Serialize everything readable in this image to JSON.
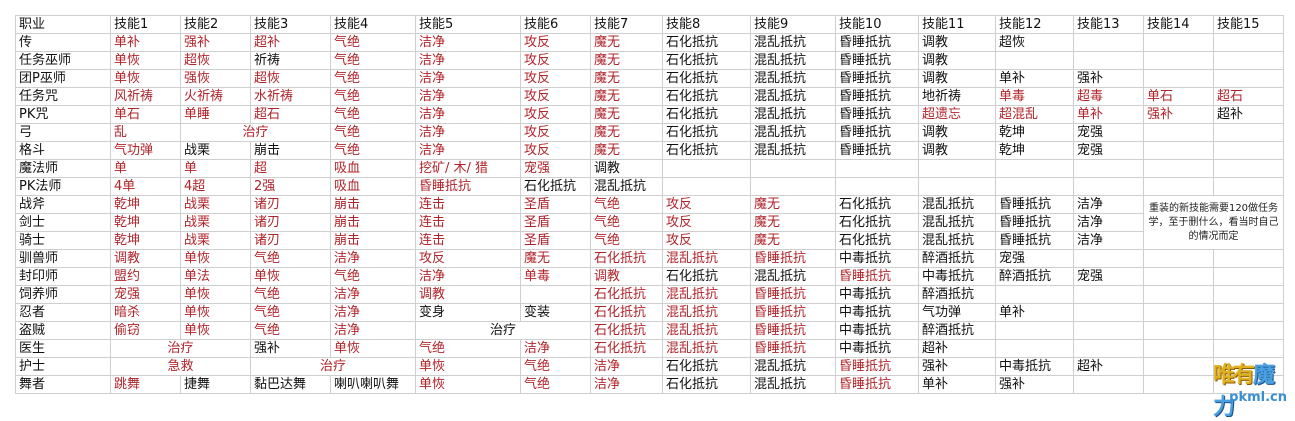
{
  "colors": {
    "red": "#b0242a",
    "black": "#111111",
    "grid": "#cfcfcf"
  },
  "header": [
    "职业",
    "技能1",
    "技能2",
    "技能3",
    "技能4",
    "技能5",
    "技能6",
    "技能7",
    "技能8",
    "技能9",
    "技能10",
    "技能11",
    "技能12",
    "技能13",
    "技能14",
    "技能15"
  ],
  "rows": [
    {
      "job": "传",
      "cells": [
        [
          "单补",
          "r"
        ],
        [
          "强补",
          "r"
        ],
        [
          "超补",
          "r"
        ],
        [
          "气绝",
          "r"
        ],
        [
          "洁净",
          "r"
        ],
        [
          "攻反",
          "r"
        ],
        [
          "魔无",
          "r"
        ],
        [
          "石化抵抗"
        ],
        [
          "混乱抵抗"
        ],
        [
          "昏睡抵抗"
        ],
        [
          "调教"
        ],
        [
          "超恢"
        ],
        [
          ""
        ],
        [
          ""
        ],
        [
          ""
        ]
      ]
    },
    {
      "job": "任务巫师",
      "cells": [
        [
          "单恢",
          "r"
        ],
        [
          "超恢",
          "r"
        ],
        [
          "祈祷"
        ],
        [
          "气绝",
          "r"
        ],
        [
          "洁净",
          "r"
        ],
        [
          "攻反",
          "r"
        ],
        [
          "魔无",
          "r"
        ],
        [
          "石化抵抗"
        ],
        [
          "混乱抵抗"
        ],
        [
          "昏睡抵抗"
        ],
        [
          "调教"
        ],
        [
          ""
        ],
        [
          ""
        ],
        [
          ""
        ],
        [
          ""
        ]
      ]
    },
    {
      "job": "团P巫师",
      "cells": [
        [
          "单恢",
          "r"
        ],
        [
          "强恢",
          "r"
        ],
        [
          "超恢",
          "r"
        ],
        [
          "气绝",
          "r"
        ],
        [
          "洁净",
          "r"
        ],
        [
          "攻反",
          "r"
        ],
        [
          "魔无",
          "r"
        ],
        [
          "石化抵抗"
        ],
        [
          "混乱抵抗"
        ],
        [
          "昏睡抵抗"
        ],
        [
          "调教"
        ],
        [
          "单补"
        ],
        [
          "强补"
        ],
        [
          ""
        ],
        [
          ""
        ]
      ]
    },
    {
      "job": "任务咒",
      "cells": [
        [
          "风祈祷",
          "r"
        ],
        [
          "火祈祷",
          "r"
        ],
        [
          "水祈祷",
          "r"
        ],
        [
          "气绝",
          "r"
        ],
        [
          "洁净",
          "r"
        ],
        [
          "攻反",
          "r"
        ],
        [
          "魔无",
          "r"
        ],
        [
          "石化抵抗"
        ],
        [
          "混乱抵抗"
        ],
        [
          "昏睡抵抗"
        ],
        [
          "地祈祷"
        ],
        [
          "单毒",
          "r"
        ],
        [
          "超毒",
          "r"
        ],
        [
          "单石",
          "r"
        ],
        [
          "超石",
          "r"
        ]
      ]
    },
    {
      "job": "PK咒",
      "cells": [
        [
          "单石",
          "r"
        ],
        [
          "单睡",
          "r"
        ],
        [
          "超石",
          "r"
        ],
        [
          "气绝",
          "r"
        ],
        [
          "洁净",
          "r"
        ],
        [
          "攻反",
          "r"
        ],
        [
          "魔无",
          "r"
        ],
        [
          "石化抵抗"
        ],
        [
          "混乱抵抗"
        ],
        [
          "昏睡抵抗"
        ],
        [
          "超遗忘",
          "r"
        ],
        [
          "超混乱",
          "r"
        ],
        [
          "单补",
          "r"
        ],
        [
          "强补",
          "r"
        ],
        [
          "超补"
        ]
      ]
    },
    {
      "job": "弓",
      "cells": [
        [
          "乱",
          "r"
        ],
        [
          "治疗",
          "r",
          2
        ],
        [
          "气绝",
          "r"
        ],
        [
          "洁净",
          "r"
        ],
        [
          "攻反",
          "r"
        ],
        [
          "魔无",
          "r"
        ],
        [
          "石化抵抗"
        ],
        [
          "混乱抵抗"
        ],
        [
          "昏睡抵抗"
        ],
        [
          "调教"
        ],
        [
          "乾坤"
        ],
        [
          "宠强"
        ],
        [
          ""
        ],
        [
          ""
        ]
      ]
    },
    {
      "job": "格斗",
      "cells": [
        [
          "气功弹",
          "r"
        ],
        [
          "战栗"
        ],
        [
          "崩击"
        ],
        [
          "气绝",
          "r"
        ],
        [
          "洁净",
          "r"
        ],
        [
          "攻反",
          "r"
        ],
        [
          "魔无",
          "r"
        ],
        [
          "石化抵抗"
        ],
        [
          "混乱抵抗"
        ],
        [
          "昏睡抵抗"
        ],
        [
          "调教"
        ],
        [
          "乾坤"
        ],
        [
          "宠强"
        ],
        [
          ""
        ],
        [
          ""
        ]
      ]
    },
    {
      "job": "魔法师",
      "cells": [
        [
          "单",
          "r"
        ],
        [
          "单",
          "r"
        ],
        [
          "超",
          "r"
        ],
        [
          "吸血",
          "r"
        ],
        [
          "挖矿/ 木/ 猎",
          "r"
        ],
        [
          "宠强",
          "r"
        ],
        [
          "调教"
        ],
        [
          ""
        ],
        [
          ""
        ],
        [
          ""
        ],
        [
          ""
        ],
        [
          ""
        ],
        [
          ""
        ],
        [
          ""
        ],
        [
          ""
        ]
      ]
    },
    {
      "job": "PK法师",
      "cells": [
        [
          "4单",
          "r"
        ],
        [
          "4超",
          "r"
        ],
        [
          "2强",
          "r"
        ],
        [
          "吸血",
          "r"
        ],
        [
          "昏睡抵抗",
          "r"
        ],
        [
          "石化抵抗"
        ],
        [
          "混乱抵抗"
        ],
        [
          ""
        ],
        [
          ""
        ],
        [
          ""
        ],
        [
          ""
        ],
        [
          ""
        ],
        [
          ""
        ],
        [
          ""
        ],
        [
          ""
        ]
      ]
    },
    {
      "job": "战斧",
      "cells": [
        [
          "乾坤",
          "r"
        ],
        [
          "战栗",
          "r"
        ],
        [
          "诸刃",
          "r"
        ],
        [
          "崩击",
          "r"
        ],
        [
          "连击",
          "r"
        ],
        [
          "圣盾",
          "r"
        ],
        [
          "气绝",
          "r"
        ],
        [
          "攻反",
          "r"
        ],
        [
          "魔无",
          "r"
        ],
        [
          "石化抵抗"
        ],
        [
          "混乱抵抗"
        ],
        [
          "昏睡抵抗"
        ],
        [
          "洁净"
        ]
      ],
      "note": true
    },
    {
      "job": "剑士",
      "cells": [
        [
          "乾坤",
          "r"
        ],
        [
          "战栗",
          "r"
        ],
        [
          "诸刃",
          "r"
        ],
        [
          "崩击",
          "r"
        ],
        [
          "连击",
          "r"
        ],
        [
          "圣盾",
          "r"
        ],
        [
          "气绝",
          "r"
        ],
        [
          "攻反",
          "r"
        ],
        [
          "魔无",
          "r"
        ],
        [
          "石化抵抗"
        ],
        [
          "混乱抵抗"
        ],
        [
          "昏睡抵抗"
        ],
        [
          "洁净"
        ]
      ]
    },
    {
      "job": "骑士",
      "cells": [
        [
          "乾坤",
          "r"
        ],
        [
          "战栗",
          "r"
        ],
        [
          "诸刃",
          "r"
        ],
        [
          "崩击",
          "r"
        ],
        [
          "连击",
          "r"
        ],
        [
          "圣盾",
          "r"
        ],
        [
          "气绝",
          "r"
        ],
        [
          "攻反",
          "r"
        ],
        [
          "魔无",
          "r"
        ],
        [
          "石化抵抗"
        ],
        [
          "混乱抵抗"
        ],
        [
          "昏睡抵抗"
        ],
        [
          "洁净"
        ]
      ]
    },
    {
      "job": "驯兽师",
      "cells": [
        [
          "调教",
          "r"
        ],
        [
          "单恢",
          "r"
        ],
        [
          "气绝",
          "r"
        ],
        [
          "洁净",
          "r"
        ],
        [
          "攻反",
          "r"
        ],
        [
          "魔无",
          "r"
        ],
        [
          "石化抵抗",
          "r"
        ],
        [
          "混乱抵抗",
          "r"
        ],
        [
          "昏睡抵抗",
          "r"
        ],
        [
          "中毒抵抗"
        ],
        [
          "醉酒抵抗"
        ],
        [
          "宠强"
        ],
        [
          ""
        ],
        [
          ""
        ],
        [
          ""
        ]
      ]
    },
    {
      "job": "封印师",
      "cells": [
        [
          "盟约",
          "r"
        ],
        [
          "单法",
          "r"
        ],
        [
          "单恢",
          "r"
        ],
        [
          "气绝",
          "r"
        ],
        [
          "洁净",
          "r"
        ],
        [
          "单毒",
          "r"
        ],
        [
          "调教",
          "r"
        ],
        [
          "石化抵抗"
        ],
        [
          "混乱抵抗"
        ],
        [
          "昏睡抵抗",
          "r"
        ],
        [
          "中毒抵抗"
        ],
        [
          "醉酒抵抗"
        ],
        [
          "宠强"
        ],
        [
          ""
        ],
        [
          ""
        ]
      ]
    },
    {
      "job": "饲养师",
      "cells": [
        [
          "宠强",
          "r"
        ],
        [
          "单恢",
          "r"
        ],
        [
          "气绝",
          "r"
        ],
        [
          "洁净",
          "r"
        ],
        [
          "调教",
          "r"
        ],
        [
          ""
        ],
        [
          "石化抵抗",
          "r"
        ],
        [
          "混乱抵抗",
          "r"
        ],
        [
          "昏睡抵抗",
          "r"
        ],
        [
          "中毒抵抗"
        ],
        [
          "醉酒抵抗"
        ],
        [
          ""
        ],
        [
          ""
        ],
        [
          ""
        ],
        [
          ""
        ]
      ]
    },
    {
      "job": "忍者",
      "cells": [
        [
          "暗杀",
          "r"
        ],
        [
          "单恢",
          "r"
        ],
        [
          "气绝",
          "r"
        ],
        [
          "洁净",
          "r"
        ],
        [
          "变身"
        ],
        [
          "变装"
        ],
        [
          "石化抵抗",
          "r"
        ],
        [
          "混乱抵抗",
          "r"
        ],
        [
          "昏睡抵抗",
          "r"
        ],
        [
          "中毒抵抗"
        ],
        [
          "气功弹"
        ],
        [
          "单补"
        ],
        [
          ""
        ],
        [
          ""
        ],
        [
          ""
        ]
      ]
    },
    {
      "job": "盗贼",
      "cells": [
        [
          "偷窃",
          "r"
        ],
        [
          "单恢",
          "r"
        ],
        [
          "气绝",
          "r"
        ],
        [
          "洁净",
          "r"
        ],
        [
          "治疗",
          "",
          2
        ],
        [
          "石化抵抗",
          "r"
        ],
        [
          "混乱抵抗",
          "r"
        ],
        [
          "昏睡抵抗",
          "r"
        ],
        [
          "中毒抵抗"
        ],
        [
          "醉酒抵抗"
        ],
        [
          ""
        ],
        [
          ""
        ],
        [
          ""
        ],
        [
          ""
        ]
      ]
    },
    {
      "job": "医生",
      "cells": [
        [
          "治疗",
          "r",
          2
        ],
        [
          "强补"
        ],
        [
          "单恢",
          "r"
        ],
        [
          "气绝",
          "r"
        ],
        [
          "洁净",
          "r"
        ],
        [
          "石化抵抗",
          "r"
        ],
        [
          "混乱抵抗",
          "r"
        ],
        [
          "昏睡抵抗",
          "r"
        ],
        [
          "中毒抵抗"
        ],
        [
          "超补"
        ],
        [
          ""
        ],
        [
          ""
        ],
        [
          ""
        ],
        [
          ""
        ]
      ]
    },
    {
      "job": "护士",
      "cells": [
        [
          "急救",
          "r",
          2
        ],
        [
          "治疗",
          "r",
          2
        ],
        [
          "单恢",
          "r"
        ],
        [
          "气绝",
          "r"
        ],
        [
          "洁净",
          "r"
        ],
        [
          "石化抵抗"
        ],
        [
          "混乱抵抗"
        ],
        [
          "昏睡抵抗",
          "r"
        ],
        [
          "强补"
        ],
        [
          "中毒抵抗"
        ],
        [
          "超补"
        ],
        [
          ""
        ],
        [
          ""
        ]
      ]
    },
    {
      "job": "舞者",
      "cells": [
        [
          "跳舞",
          "r"
        ],
        [
          "捷舞"
        ],
        [
          "黏巴达舞"
        ],
        [
          "喇叭喇叭舞"
        ],
        [
          "单恢",
          "r"
        ],
        [
          "气绝",
          "r"
        ],
        [
          "洁净",
          "r"
        ],
        [
          "石化抵抗"
        ],
        [
          "混乱抵抗"
        ],
        [
          "昏睡抵抗",
          "r"
        ],
        [
          "单补"
        ],
        [
          "强补"
        ],
        [
          ""
        ],
        [
          ""
        ],
        [
          ""
        ]
      ]
    }
  ],
  "note": "重装的新技能需要120做任务学，至于删什么，看当时自己的情况而定",
  "logo": {
    "text": "唯有魔力",
    "url": "pkml.cn"
  }
}
